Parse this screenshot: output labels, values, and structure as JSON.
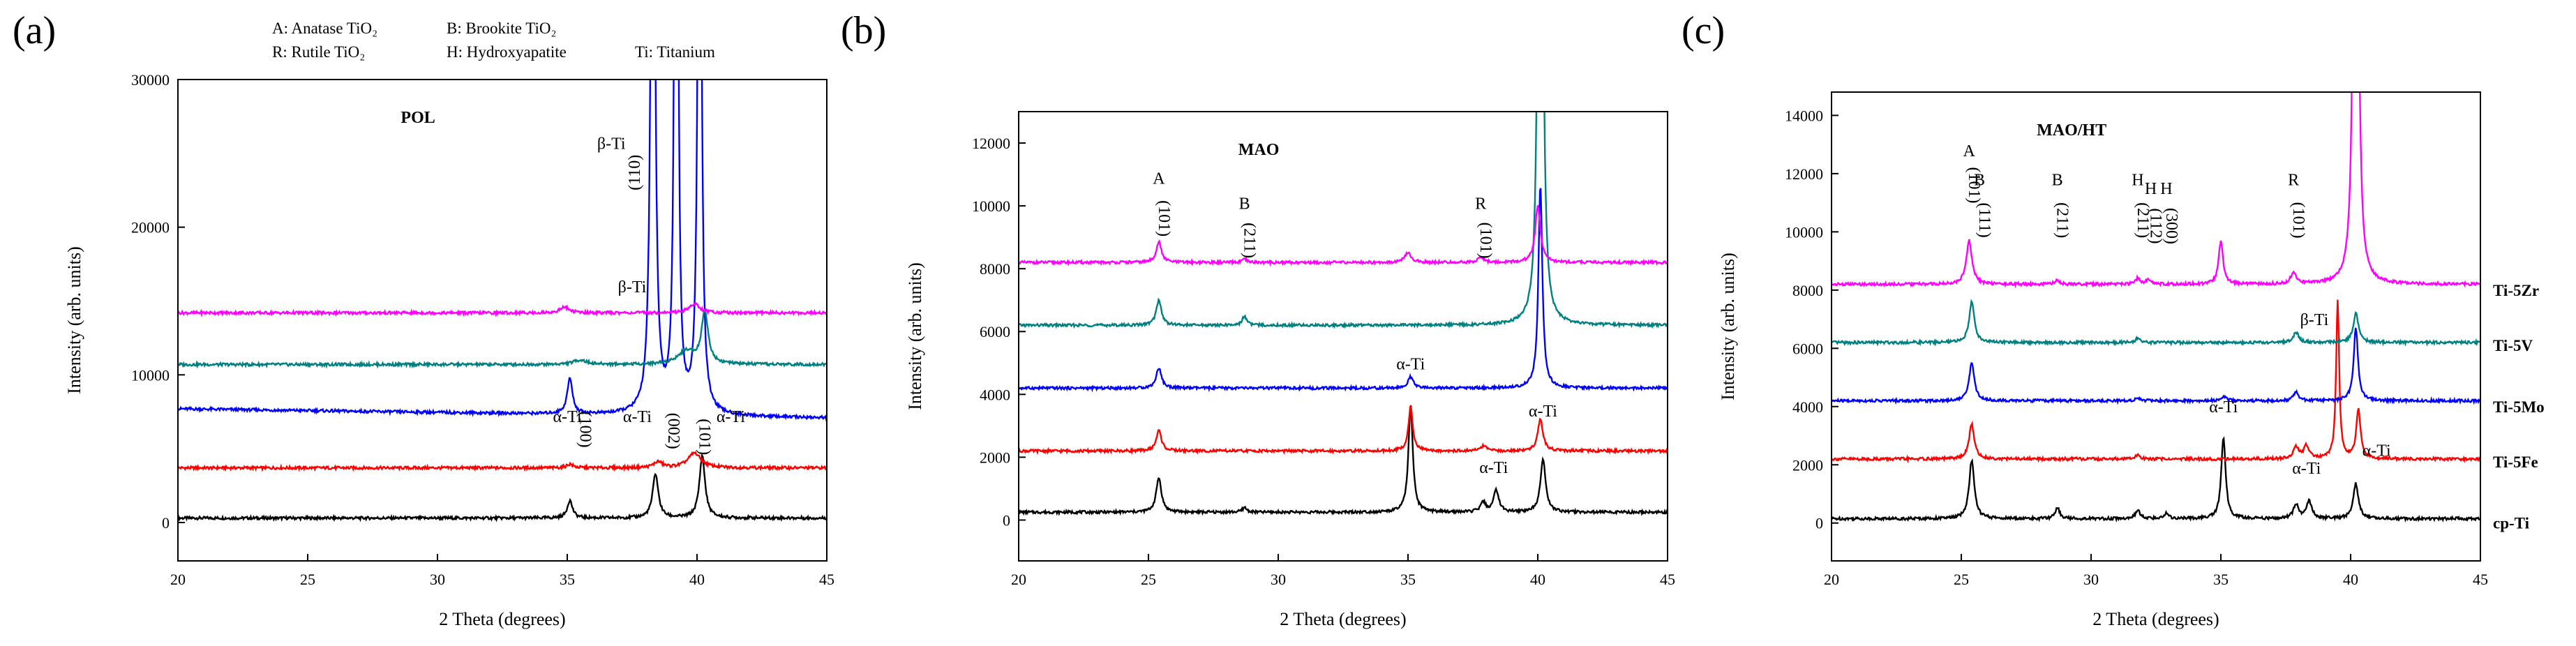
{
  "legend": {
    "a": "A: Anatase TiO₂",
    "b": "B: Brookite TiO₂",
    "r": "R: Rutile TiO₂",
    "h": "H: Hydroxyapatite",
    "ti": "Ti: Titanium"
  },
  "chart_data": [
    {
      "type": "line",
      "panel_letter": "(a)",
      "title": "POL",
      "xlabel": "2 Theta (degrees)",
      "ylabel": "Intensity (arb. units)",
      "xlim": [
        20,
        45
      ],
      "ylim": [
        -2600,
        30000
      ],
      "xticks": [
        20,
        25,
        30,
        35,
        40,
        45
      ],
      "yticks": [
        0,
        10000,
        20000,
        30000
      ],
      "series": [
        {
          "name": "cp-Ti",
          "color": "#000000",
          "baseline": 300,
          "peaks": [
            [
              35.1,
              1200,
              0.12
            ],
            [
              38.4,
              3000,
              0.13
            ],
            [
              40.2,
              4200,
              0.13
            ]
          ]
        },
        {
          "name": "Ti-5Fe",
          "color": "#ff0000",
          "baseline": 3700,
          "peaks": [
            [
              35.1,
              250,
              0.15
            ],
            [
              38.5,
              400,
              0.2
            ],
            [
              39.9,
              1000,
              0.3
            ]
          ]
        },
        {
          "name": "Ti-5Mo",
          "color": "#0000ff",
          "baseline": 7700,
          "slope": -25,
          "peaks": [
            [
              35.1,
              2400,
              0.12
            ],
            [
              38.3,
              60000,
              0.08
            ],
            [
              39.2,
              80000,
              0.06
            ],
            [
              40.1,
              60000,
              0.07
            ]
          ]
        },
        {
          "name": "Ti-5V",
          "color": "#008080",
          "baseline": 10700,
          "peaks": [
            [
              35.5,
              300,
              0.3
            ],
            [
              39.6,
              900,
              0.4
            ],
            [
              40.3,
              3500,
              0.15
            ]
          ]
        },
        {
          "name": "Ti-5Zr",
          "color": "#ff00ff",
          "baseline": 14200,
          "peaks": [
            [
              34.9,
              400,
              0.2
            ],
            [
              39.9,
              600,
              0.25
            ]
          ]
        }
      ],
      "annotations": [
        {
          "text": "α-Ti",
          "x": 35.0,
          "y": 6800,
          "rotate": 0
        },
        {
          "text": "(100)",
          "x": 35.5,
          "y": 6300,
          "rotate": 90
        },
        {
          "text": "α-Ti",
          "x": 37.7,
          "y": 6800,
          "rotate": 0
        },
        {
          "text": "(002)",
          "x": 38.9,
          "y": 6200,
          "rotate": 90
        },
        {
          "text": "(101)",
          "x": 40.1,
          "y": 5800,
          "rotate": 90
        },
        {
          "text": "α-Ti",
          "x": 41.3,
          "y": 6800,
          "rotate": 0
        },
        {
          "text": "β-Ti",
          "x": 36.7,
          "y": 25300,
          "rotate": 0
        },
        {
          "text": "(110)",
          "x": 37.8,
          "y": 23700,
          "rotate": -90
        },
        {
          "text": "β-Ti",
          "x": 37.5,
          "y": 15600,
          "rotate": 0
        }
      ]
    },
    {
      "type": "line",
      "panel_letter": "(b)",
      "title": "MAO",
      "xlabel": "2 Theta (degrees)",
      "ylabel": "Intensity (arb. units)",
      "xlim": [
        20,
        45
      ],
      "ylim": [
        -1300,
        13000
      ],
      "xticks": [
        20,
        25,
        30,
        35,
        40,
        45
      ],
      "yticks": [
        0,
        2000,
        4000,
        6000,
        8000,
        10000,
        12000
      ],
      "series": [
        {
          "name": "cp-Ti",
          "color": "#000000",
          "baseline": 250,
          "peaks": [
            [
              25.4,
              1100,
              0.12
            ],
            [
              28.7,
              150,
              0.1
            ],
            [
              35.1,
              3400,
              0.1
            ],
            [
              37.9,
              300,
              0.12
            ],
            [
              38.4,
              700,
              0.12
            ],
            [
              40.2,
              1700,
              0.12
            ]
          ]
        },
        {
          "name": "Ti-5Fe",
          "color": "#ff0000",
          "baseline": 2200,
          "peaks": [
            [
              25.4,
              650,
              0.12
            ],
            [
              35.1,
              1400,
              0.1
            ],
            [
              37.9,
              150,
              0.15
            ],
            [
              40.1,
              1000,
              0.12
            ]
          ]
        },
        {
          "name": "Ti-5Mo",
          "color": "#0000ff",
          "baseline": 4200,
          "peaks": [
            [
              25.4,
              650,
              0.12
            ],
            [
              35.1,
              350,
              0.12
            ],
            [
              40.1,
              6500,
              0.09
            ]
          ]
        },
        {
          "name": "Ti-5V",
          "color": "#008080",
          "baseline": 6200,
          "peaks": [
            [
              25.4,
              800,
              0.12
            ],
            [
              28.7,
              300,
              0.1
            ],
            [
              40.1,
              40000,
              0.07
            ]
          ]
        },
        {
          "name": "Ti-5Zr",
          "color": "#ff00ff",
          "baseline": 8200,
          "peaks": [
            [
              25.4,
              650,
              0.12
            ],
            [
              28.7,
              100,
              0.1
            ],
            [
              35.0,
              300,
              0.15
            ],
            [
              37.8,
              150,
              0.15
            ],
            [
              40.0,
              1800,
              0.12
            ]
          ]
        }
      ],
      "annotations": [
        {
          "text": "A",
          "x": 25.4,
          "y": 10700,
          "rotate": 0
        },
        {
          "text": "(101)",
          "x": 25.4,
          "y": 9600,
          "rotate": 90
        },
        {
          "text": "B",
          "x": 28.7,
          "y": 9900,
          "rotate": 0
        },
        {
          "text": "(211)",
          "x": 28.7,
          "y": 8900,
          "rotate": 90
        },
        {
          "text": "R",
          "x": 37.8,
          "y": 9900,
          "rotate": 0
        },
        {
          "text": "(101)",
          "x": 37.8,
          "y": 8900,
          "rotate": 90
        },
        {
          "text": "α-Ti",
          "x": 35.1,
          "y": 4800,
          "rotate": 0
        },
        {
          "text": "α-Ti",
          "x": 40.2,
          "y": 3300,
          "rotate": 0
        },
        {
          "text": "α-Ti",
          "x": 38.3,
          "y": 1500,
          "rotate": 0
        }
      ]
    },
    {
      "type": "line",
      "panel_letter": "(c)",
      "title": "MAO/HT",
      "xlabel": "2 Theta (degrees)",
      "ylabel": "Intensity (arb. units)",
      "xlim": [
        20,
        45
      ],
      "ylim": [
        -1300,
        14800
      ],
      "xticks": [
        20,
        25,
        30,
        35,
        40,
        45
      ],
      "yticks": [
        0,
        2000,
        4000,
        6000,
        8000,
        10000,
        12000,
        14000
      ],
      "series": [
        {
          "name": "cp-Ti",
          "color": "#000000",
          "baseline": 150,
          "peaks": [
            [
              25.4,
              2000,
              0.12
            ],
            [
              28.7,
              400,
              0.1
            ],
            [
              31.8,
              300,
              0.1
            ],
            [
              32.9,
              200,
              0.1
            ],
            [
              35.1,
              2800,
              0.1
            ],
            [
              37.9,
              500,
              0.12
            ],
            [
              38.4,
              600,
              0.12
            ],
            [
              40.2,
              1200,
              0.12
            ]
          ]
        },
        {
          "name": "Ti-5Fe",
          "color": "#ff0000",
          "baseline": 2200,
          "peaks": [
            [
              25.4,
              1200,
              0.12
            ],
            [
              31.8,
              150,
              0.1
            ],
            [
              37.9,
              400,
              0.12
            ],
            [
              38.3,
              450,
              0.12
            ],
            [
              39.5,
              5400,
              0.07
            ],
            [
              40.3,
              1700,
              0.1
            ]
          ]
        },
        {
          "name": "Ti-5Mo",
          "color": "#0000ff",
          "baseline": 4200,
          "peaks": [
            [
              25.4,
              1300,
              0.12
            ],
            [
              31.8,
              100,
              0.1
            ],
            [
              35.1,
              150,
              0.12
            ],
            [
              37.9,
              300,
              0.12
            ],
            [
              40.2,
              2500,
              0.1
            ]
          ]
        },
        {
          "name": "Ti-5V",
          "color": "#008080",
          "baseline": 6200,
          "peaks": [
            [
              25.4,
              1400,
              0.12
            ],
            [
              31.8,
              150,
              0.1
            ],
            [
              37.9,
              350,
              0.12
            ],
            [
              40.2,
              1000,
              0.12
            ]
          ]
        },
        {
          "name": "Ti-5Zr",
          "color": "#ff00ff",
          "baseline": 8200,
          "peaks": [
            [
              25.3,
              1500,
              0.13
            ],
            [
              28.7,
              150,
              0.1
            ],
            [
              31.8,
              200,
              0.1
            ],
            [
              32.2,
              150,
              0.1
            ],
            [
              35.0,
              1500,
              0.1
            ],
            [
              37.8,
              400,
              0.12
            ],
            [
              40.2,
              40000,
              0.07
            ]
          ]
        }
      ],
      "series_labels": [
        "Ti-5Zr",
        "Ti-5V",
        "Ti-5Mo",
        "Ti-5Fe",
        "cp-Ti"
      ],
      "series_label_y": [
        8000,
        6100,
        4000,
        2100,
        0
      ],
      "annotations": [
        {
          "text": "A",
          "x": 25.3,
          "y": 12600,
          "rotate": 0
        },
        {
          "text": "(101)",
          "x": 25.3,
          "y": 11600,
          "rotate": 90
        },
        {
          "text": "B",
          "x": 25.7,
          "y": 11600,
          "rotate": 0
        },
        {
          "text": "(111)",
          "x": 25.7,
          "y": 10400,
          "rotate": 90
        },
        {
          "text": "B",
          "x": 28.7,
          "y": 11600,
          "rotate": 0
        },
        {
          "text": "(211)",
          "x": 28.7,
          "y": 10400,
          "rotate": 90
        },
        {
          "text": "H",
          "x": 31.8,
          "y": 11600,
          "rotate": 0
        },
        {
          "text": "(211)",
          "x": 31.8,
          "y": 10400,
          "rotate": 90
        },
        {
          "text": "H",
          "x": 32.3,
          "y": 11300,
          "rotate": 0
        },
        {
          "text": "(112)",
          "x": 32.3,
          "y": 10200,
          "rotate": 90
        },
        {
          "text": "H",
          "x": 32.9,
          "y": 11300,
          "rotate": 0
        },
        {
          "text": "(300)",
          "x": 32.9,
          "y": 10200,
          "rotate": 90
        },
        {
          "text": "R",
          "x": 37.8,
          "y": 11600,
          "rotate": 0
        },
        {
          "text": "(101)",
          "x": 37.8,
          "y": 10400,
          "rotate": 90
        },
        {
          "text": "β-Ti",
          "x": 38.6,
          "y": 6800,
          "rotate": 0
        },
        {
          "text": "α-Ti",
          "x": 35.1,
          "y": 3800,
          "rotate": 0
        },
        {
          "text": "α-Ti",
          "x": 38.3,
          "y": 1700,
          "rotate": 0
        },
        {
          "text": "α-Ti",
          "x": 41.0,
          "y": 2300,
          "rotate": 0
        }
      ]
    }
  ]
}
